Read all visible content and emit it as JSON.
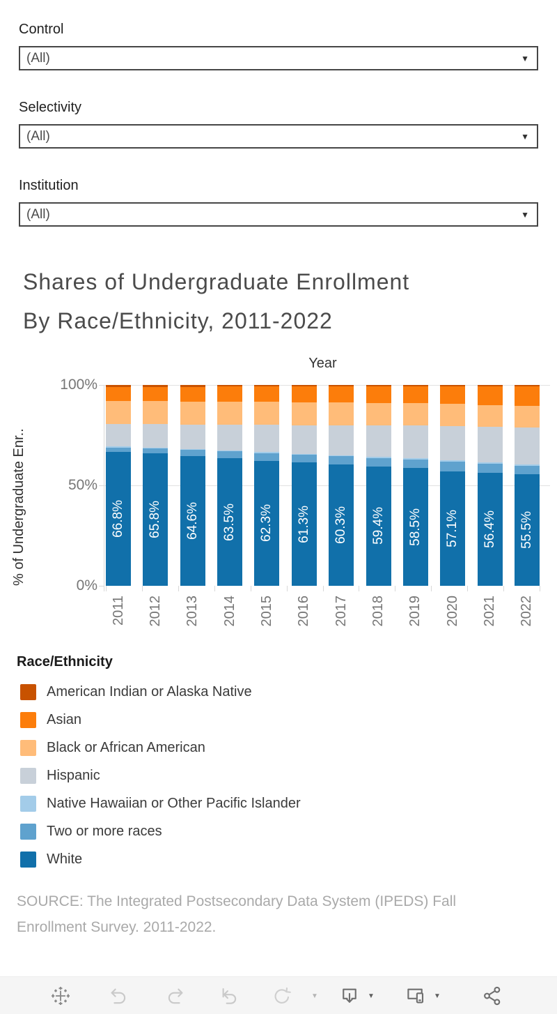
{
  "filters": [
    {
      "label": "Control",
      "value": "(All)"
    },
    {
      "label": "Selectivity",
      "value": "(All)"
    },
    {
      "label": "Institution",
      "value": "(All)"
    }
  ],
  "title": {
    "line1": "Shares of Undergraduate Enrollment",
    "line2": "By Race/Ethnicity, 2011-2022"
  },
  "chart_data": {
    "type": "bar",
    "stacked": true,
    "percent": true,
    "x_title": "Year",
    "y_title": "% of Undergraduate Enr..",
    "categories": [
      "2011",
      "2012",
      "2013",
      "2014",
      "2015",
      "2016",
      "2017",
      "2018",
      "2019",
      "2020",
      "2021",
      "2022"
    ],
    "ylim": [
      0,
      100
    ],
    "y_ticks": [
      {
        "label": "100%",
        "value": 100
      },
      {
        "label": "50%",
        "value": 50
      },
      {
        "label": "0%",
        "value": 0
      }
    ],
    "grid": "horizontal",
    "legend_position": "bottom-left",
    "series": [
      {
        "name": "American Indian or Alaska Native",
        "color": "#c85200",
        "values": [
          1.0,
          0.9,
          0.9,
          0.8,
          0.8,
          0.8,
          0.7,
          0.7,
          0.7,
          0.7,
          0.7,
          0.7
        ]
      },
      {
        "name": "Asian",
        "color": "#fc7d0b",
        "values": [
          6.9,
          7.1,
          7.3,
          7.5,
          7.7,
          7.9,
          8.1,
          8.3,
          8.5,
          8.8,
          9.2,
          9.6
        ]
      },
      {
        "name": "Black or African American",
        "color": "#ffbc79",
        "values": [
          11.6,
          11.6,
          11.5,
          11.4,
          11.4,
          11.3,
          11.2,
          11.1,
          11.0,
          10.9,
          10.8,
          10.8
        ]
      },
      {
        "name": "Hispanic",
        "color": "#c8d0d9",
        "values": [
          11.1,
          11.6,
          12.2,
          12.9,
          13.6,
          14.3,
          15.0,
          15.7,
          16.4,
          17.2,
          17.9,
          18.6
        ]
      },
      {
        "name": "Native Hawaiian or Other Pacific Islander",
        "color": "#a3cce9",
        "values": [
          0.5,
          0.5,
          0.5,
          0.5,
          0.5,
          0.5,
          0.5,
          0.5,
          0.5,
          0.5,
          0.5,
          0.5
        ]
      },
      {
        "name": "Two or more races",
        "color": "#5fa2ce",
        "values": [
          2.1,
          2.5,
          3.0,
          3.4,
          3.7,
          3.9,
          4.2,
          4.3,
          4.4,
          4.8,
          4.5,
          4.3
        ]
      },
      {
        "name": "White",
        "color": "#1170aa",
        "values": [
          66.8,
          65.8,
          64.6,
          63.5,
          62.3,
          61.3,
          60.3,
          59.4,
          58.5,
          57.1,
          56.4,
          55.5
        ]
      }
    ],
    "bar_labels": {
      "series": "White",
      "values": [
        "66.8%",
        "65.8%",
        "64.6%",
        "63.5%",
        "62.3%",
        "61.3%",
        "60.3%",
        "59.4%",
        "58.5%",
        "57.1%",
        "56.4%",
        "55.5%"
      ]
    }
  },
  "legend": {
    "title": "Race/Ethnicity"
  },
  "source": {
    "line1": "SOURCE: The Integrated Postsecondary Data System (IPEDS) Fall",
    "line2": "Enrollment Survey. 2011-2022."
  },
  "toolbar": {
    "icons": [
      "tableau-logo",
      "undo",
      "redo",
      "replay",
      "refresh",
      "refresh-caret",
      "download",
      "download-caret",
      "device-layouts",
      "device-layouts-caret",
      "share"
    ]
  }
}
